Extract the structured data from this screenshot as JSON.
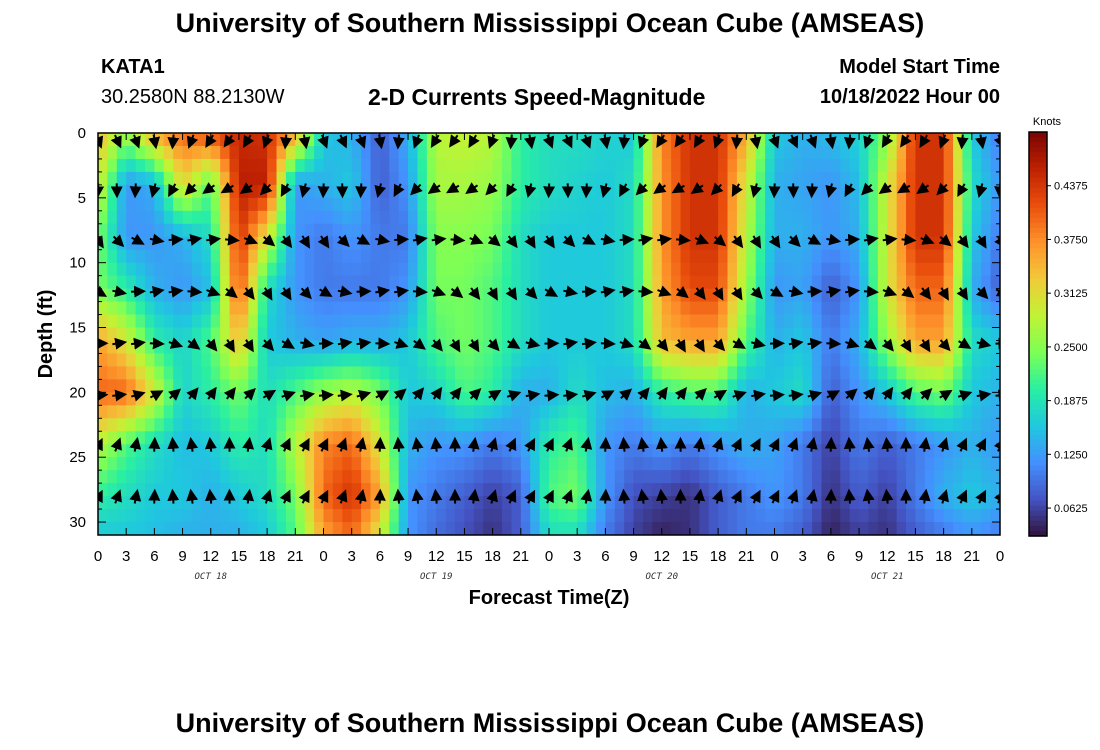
{
  "header": {
    "title": "University of Southern Mississippi Ocean Cube (AMSEAS)",
    "station": "KATA1",
    "coordinates": "30.2580N  88.2130W",
    "subtitle": "2-D Currents Speed-Magnitude",
    "start_label": "Model Start Time",
    "start_value": "10/18/2022 Hour 00"
  },
  "footer": {
    "title": "University of Southern Mississippi Ocean Cube (AMSEAS)"
  },
  "chart_data": {
    "type": "heatmap",
    "title": "2-D Currents Speed-Magnitude",
    "xlabel": "Forecast Time(Z)",
    "ylabel": "Depth (ft)",
    "xlim": [
      0,
      96
    ],
    "ylim": [
      0,
      31
    ],
    "x_tick_labels": [
      "0",
      "3",
      "6",
      "9",
      "12",
      "15",
      "18",
      "21",
      "0",
      "3",
      "6",
      "9",
      "12",
      "15",
      "18",
      "21",
      "0",
      "3",
      "6",
      "9",
      "12",
      "15",
      "18",
      "21",
      "0",
      "3",
      "6",
      "9",
      "12",
      "15",
      "18",
      "21",
      "0"
    ],
    "day_labels": [
      {
        "label": "OCT 18",
        "x": 12
      },
      {
        "label": "OCT 19",
        "x": 36
      },
      {
        "label": "OCT 20",
        "x": 60
      },
      {
        "label": "OCT 21",
        "x": 84
      }
    ],
    "y_ticks": [
      0,
      5,
      10,
      15,
      20,
      25,
      30
    ],
    "colorbar": {
      "unit": "Knots",
      "min": 0.03,
      "max": 0.5,
      "ticks": [
        "0.4375",
        "0.3750",
        "0.3125",
        "0.2500",
        "0.1875",
        "0.1250",
        "0.0625"
      ],
      "colors": [
        "#30123b",
        "#4454c4",
        "#4490fe",
        "#1fc8de",
        "#29efa2",
        "#7dff56",
        "#c1f334",
        "#f1ca3a",
        "#fe922a",
        "#ea4f0d",
        "#be2102",
        "#7a0403"
      ]
    },
    "speed_grid_knots": {
      "depths_ft": [
        0,
        4,
        8,
        12,
        16,
        20,
        24,
        28,
        31
      ],
      "hours": [
        0,
        3,
        6,
        9,
        12,
        15,
        18,
        21,
        24,
        27,
        30,
        33,
        36,
        39,
        42,
        45,
        48,
        51,
        54,
        57,
        60,
        63,
        66,
        69,
        72,
        75,
        78,
        81,
        84,
        87,
        90,
        93,
        96
      ],
      "values": [
        [
          0.34,
          0.26,
          0.36,
          0.4,
          0.42,
          0.45,
          0.44,
          0.36,
          0.16,
          0.14,
          0.08,
          0.14,
          0.28,
          0.29,
          0.28,
          0.2,
          0.18,
          0.18,
          0.17,
          0.16,
          0.38,
          0.44,
          0.44,
          0.35,
          0.16,
          0.14,
          0.15,
          0.17,
          0.25,
          0.44,
          0.44,
          0.16,
          0.1
        ],
        [
          0.3,
          0.12,
          0.14,
          0.32,
          0.22,
          0.46,
          0.46,
          0.12,
          0.14,
          0.16,
          0.08,
          0.12,
          0.27,
          0.27,
          0.26,
          0.2,
          0.18,
          0.17,
          0.16,
          0.18,
          0.37,
          0.44,
          0.44,
          0.3,
          0.14,
          0.13,
          0.12,
          0.15,
          0.3,
          0.44,
          0.44,
          0.18,
          0.12
        ],
        [
          0.24,
          0.12,
          0.12,
          0.14,
          0.18,
          0.44,
          0.3,
          0.12,
          0.1,
          0.12,
          0.1,
          0.1,
          0.25,
          0.25,
          0.24,
          0.18,
          0.16,
          0.16,
          0.16,
          0.18,
          0.37,
          0.44,
          0.44,
          0.28,
          0.14,
          0.14,
          0.12,
          0.14,
          0.3,
          0.44,
          0.44,
          0.16,
          0.1
        ],
        [
          0.24,
          0.2,
          0.14,
          0.12,
          0.15,
          0.42,
          0.18,
          0.12,
          0.1,
          0.1,
          0.1,
          0.12,
          0.24,
          0.24,
          0.22,
          0.18,
          0.16,
          0.16,
          0.16,
          0.18,
          0.36,
          0.42,
          0.42,
          0.26,
          0.12,
          0.13,
          0.08,
          0.12,
          0.3,
          0.4,
          0.4,
          0.14,
          0.08
        ],
        [
          0.36,
          0.3,
          0.2,
          0.17,
          0.22,
          0.34,
          0.16,
          0.14,
          0.13,
          0.14,
          0.14,
          0.16,
          0.22,
          0.24,
          0.22,
          0.18,
          0.16,
          0.16,
          0.16,
          0.18,
          0.34,
          0.36,
          0.36,
          0.22,
          0.14,
          0.16,
          0.1,
          0.14,
          0.26,
          0.36,
          0.36,
          0.18,
          0.16
        ],
        [
          0.4,
          0.4,
          0.3,
          0.17,
          0.2,
          0.24,
          0.18,
          0.22,
          0.26,
          0.28,
          0.24,
          0.16,
          0.17,
          0.22,
          0.2,
          0.14,
          0.14,
          0.18,
          0.15,
          0.14,
          0.2,
          0.22,
          0.22,
          0.14,
          0.16,
          0.18,
          0.08,
          0.12,
          0.16,
          0.22,
          0.24,
          0.16,
          0.14
        ],
        [
          0.28,
          0.22,
          0.18,
          0.15,
          0.16,
          0.2,
          0.18,
          0.28,
          0.38,
          0.4,
          0.3,
          0.14,
          0.12,
          0.12,
          0.1,
          0.12,
          0.2,
          0.22,
          0.12,
          0.1,
          0.12,
          0.1,
          0.12,
          0.14,
          0.13,
          0.1,
          0.06,
          0.1,
          0.08,
          0.1,
          0.12,
          0.14,
          0.12
        ],
        [
          0.2,
          0.18,
          0.16,
          0.16,
          0.14,
          0.16,
          0.18,
          0.24,
          0.4,
          0.44,
          0.36,
          0.12,
          0.1,
          0.08,
          0.06,
          0.08,
          0.22,
          0.24,
          0.12,
          0.07,
          0.06,
          0.05,
          0.08,
          0.1,
          0.12,
          0.1,
          0.05,
          0.08,
          0.06,
          0.1,
          0.14,
          0.16,
          0.14
        ],
        [
          0.16,
          0.16,
          0.15,
          0.14,
          0.14,
          0.14,
          0.16,
          0.22,
          0.36,
          0.4,
          0.3,
          0.12,
          0.09,
          0.07,
          0.05,
          0.08,
          0.18,
          0.18,
          0.1,
          0.06,
          0.04,
          0.05,
          0.08,
          0.1,
          0.1,
          0.08,
          0.04,
          0.06,
          0.05,
          0.08,
          0.1,
          0.12,
          0.1
        ]
      ]
    }
  },
  "icons": {
    "direction_arrow": "current-direction-arrow-icon"
  }
}
